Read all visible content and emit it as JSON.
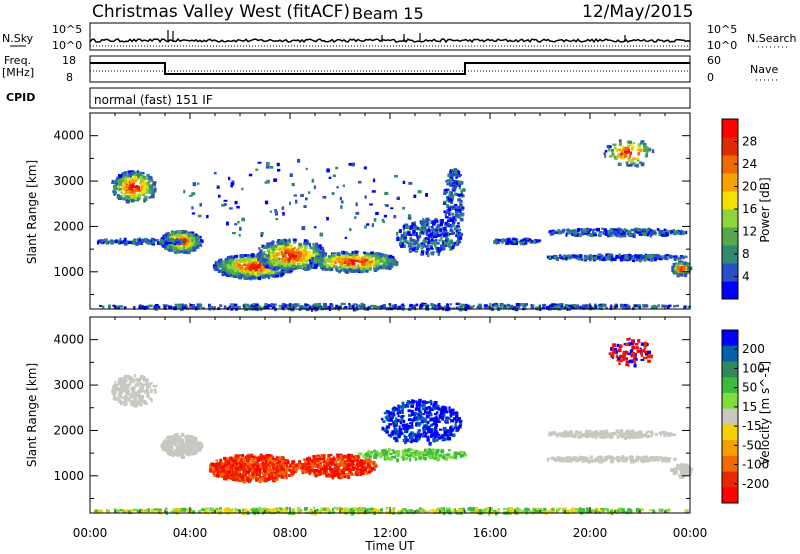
{
  "header": {
    "title": "Christmas Valley West (fitACF)",
    "beam": "Beam 15",
    "date": "12/May/2015"
  },
  "panels": {
    "nsky": {
      "label_top": "N.Sky",
      "left_ticks": [
        "10^5",
        "10^0"
      ],
      "right_ticks": [
        "10^5",
        "10^0"
      ],
      "right_label": "N.Search"
    },
    "freq": {
      "label_line1": "Freq.",
      "label_line2": "[MHz]",
      "left_ticks": [
        "18",
        "8"
      ],
      "right_ticks": [
        "60",
        "0"
      ],
      "right_label": "Nave"
    },
    "cpid": {
      "label": "CPID",
      "text": "normal (fast) 151 IF"
    }
  },
  "chart_data": [
    {
      "type": "heatmap",
      "name": "power",
      "ylabel": "Slant Range [km]",
      "xlabel": "",
      "xlim": [
        "00:00",
        "24:00"
      ],
      "ylim": [
        180,
        4500
      ],
      "yticks": [
        1000,
        2000,
        3000,
        4000
      ],
      "colorbar": {
        "label": "Power [dB]",
        "ticks": [
          4,
          8,
          12,
          16,
          20,
          24,
          28
        ],
        "range": [
          0,
          30
        ],
        "colors": [
          "#0000ff",
          "#2b4fc9",
          "#2f8a73",
          "#56a94a",
          "#8fd43a",
          "#f2e100",
          "#f7a200",
          "#f06a00",
          "#e02a00",
          "#ff0000"
        ]
      }
    },
    {
      "type": "heatmap",
      "name": "velocity",
      "ylabel": "Slant Range [km]",
      "xlabel": "Time UT",
      "xlim": [
        "00:00",
        "24:00"
      ],
      "ylim": [
        180,
        4500
      ],
      "yticks": [
        1000,
        2000,
        3000,
        4000
      ],
      "xticks": [
        "00:00",
        "04:00",
        "08:00",
        "12:00",
        "16:00",
        "20:00",
        "00:00"
      ],
      "colorbar": {
        "label": "Velocity [m s^-1]",
        "ticks": [
          "200",
          "100",
          "50",
          "15",
          "-15",
          "-50",
          "-100",
          "-200"
        ],
        "colors": [
          "#0000ff",
          "#0060a8",
          "#2f8a5a",
          "#3cba3c",
          "#7fdc3f",
          "#c8c8c0",
          "#f2d200",
          "#f6a000",
          "#f26a00",
          "#e82800",
          "#ff0000"
        ]
      }
    }
  ]
}
